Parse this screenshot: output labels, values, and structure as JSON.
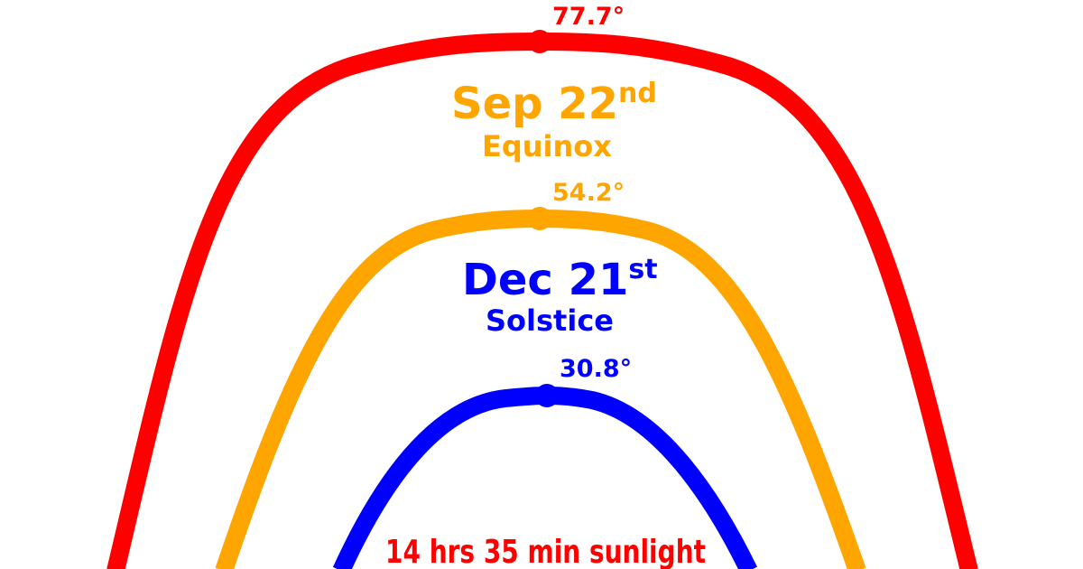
{
  "colors": {
    "summer": "#ff0000",
    "equinox": "#ffa500",
    "winter": "#0000ff",
    "background": "#ffffff"
  },
  "arcs": [
    {
      "key": "summer",
      "peak_angle": "77.7°"
    },
    {
      "key": "equinox",
      "peak_angle": "54.2°",
      "date": "Sep 22",
      "date_suffix": "nd",
      "event": "Equinox"
    },
    {
      "key": "winter",
      "peak_angle": "30.8°",
      "date": "Dec 21",
      "date_suffix": "st",
      "event": "Solstice"
    }
  ],
  "sunlight": "14 hrs 35 min sunlight"
}
